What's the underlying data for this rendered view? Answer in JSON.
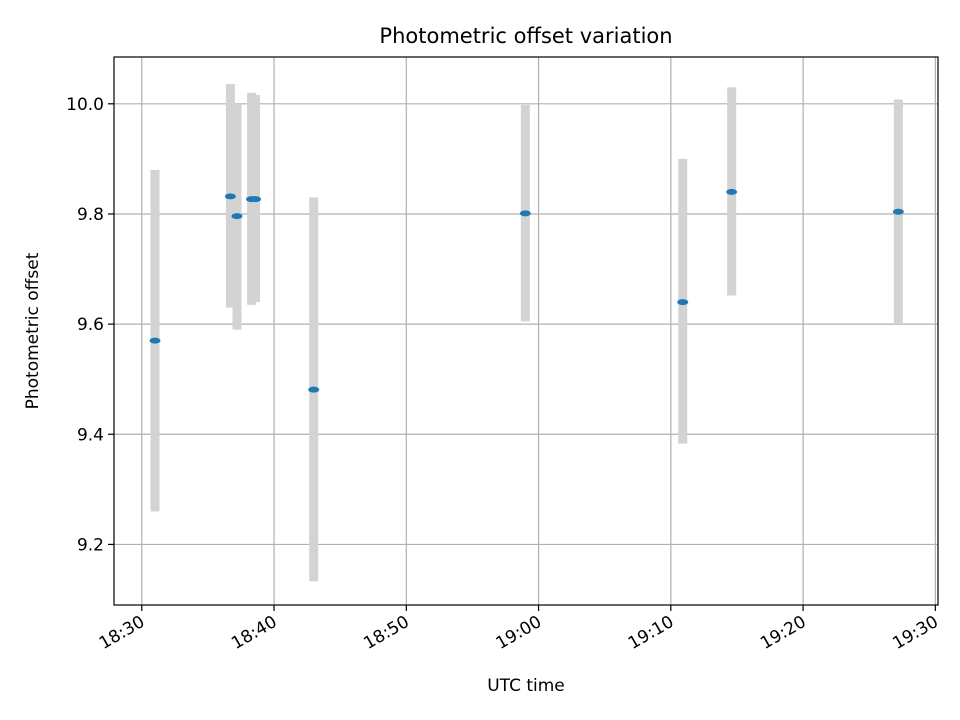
{
  "chart_data": {
    "type": "scatter",
    "title": "Photometric offset variation",
    "xlabel": "UTC time",
    "ylabel": "Photometric offset",
    "grid": true,
    "x_ticks": [
      "18:30",
      "18:40",
      "18:50",
      "19:00",
      "19:10",
      "19:20",
      "19:30"
    ],
    "x_tick_minutes": [
      1110,
      1120,
      1130,
      1140,
      1150,
      1160,
      1170
    ],
    "xlim_minutes": [
      1107.9,
      1170.2
    ],
    "y_ticks": [
      "9.2",
      "9.4",
      "9.6",
      "9.8",
      "10.0"
    ],
    "y_tick_values": [
      9.2,
      9.4,
      9.6,
      9.8,
      10.0
    ],
    "ylim": [
      9.09,
      10.085
    ],
    "errorbar_color": "#d3d3d3",
    "point_color": "#1f77b4",
    "points": [
      {
        "time": "18:31",
        "y": 9.57,
        "low": 9.26,
        "high": 9.88
      },
      {
        "time": "18:36.7",
        "y": 9.832,
        "low": 9.63,
        "high": 10.036
      },
      {
        "time": "18:37.2",
        "y": 9.796,
        "low": 9.59,
        "high": 10.0
      },
      {
        "time": "18:38.3",
        "y": 9.827,
        "low": 9.635,
        "high": 10.02
      },
      {
        "time": "18:38.6",
        "y": 9.827,
        "low": 9.64,
        "high": 10.016
      },
      {
        "time": "18:43",
        "y": 9.481,
        "low": 9.133,
        "high": 9.83
      },
      {
        "time": "18:59",
        "y": 9.801,
        "low": 9.605,
        "high": 9.998
      },
      {
        "time": "19:10.9",
        "y": 9.64,
        "low": 9.383,
        "high": 9.9
      },
      {
        "time": "19:14.6",
        "y": 9.84,
        "low": 9.652,
        "high": 10.03
      },
      {
        "time": "19:27.2",
        "y": 9.804,
        "low": 9.6,
        "high": 10.008
      }
    ]
  }
}
